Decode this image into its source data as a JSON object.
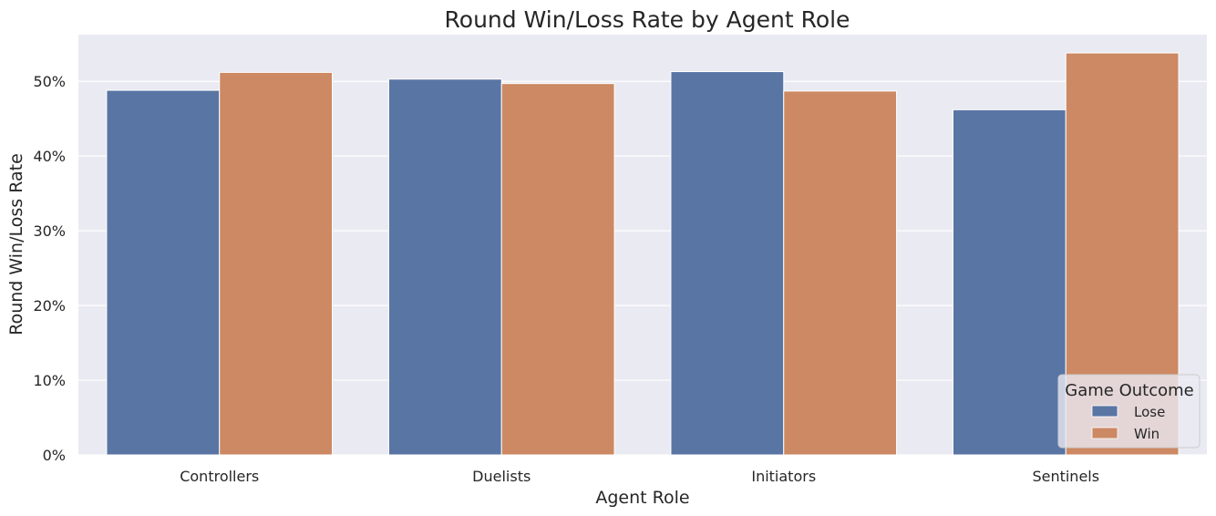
{
  "chart_data": {
    "type": "bar",
    "title": "Round Win/Loss Rate by Agent Role",
    "xlabel": "Agent Role",
    "ylabel": "Round Win/Loss Rate",
    "categories": [
      "Controllers",
      "Duelists",
      "Initiators",
      "Sentinels"
    ],
    "series": [
      {
        "name": "Lose",
        "color": "#5975a4",
        "values": [
          0.488,
          0.503,
          0.513,
          0.462
        ]
      },
      {
        "name": "Win",
        "color": "#cc8963",
        "values": [
          0.512,
          0.497,
          0.487,
          0.538
        ]
      }
    ],
    "ylim": [
      0,
      0.5625
    ],
    "yticks": [
      0,
      0.1,
      0.2,
      0.3,
      0.4,
      0.5
    ],
    "ytick_labels": [
      "0%",
      "10%",
      "20%",
      "30%",
      "40%",
      "50%"
    ],
    "legend": {
      "title": "Game Outcome",
      "position": "lower-right"
    },
    "grid": true,
    "background": "#eaeaf2"
  }
}
